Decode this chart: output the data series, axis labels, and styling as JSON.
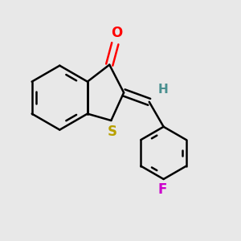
{
  "bg_color": "#e8e8e8",
  "bond_color": "#000000",
  "O_color": "#ff0000",
  "S_color": "#b8a000",
  "F_color": "#cc00cc",
  "H_color": "#4a9090",
  "line_width": 1.8,
  "figsize": [
    3.0,
    3.0
  ],
  "dpi": 100,
  "xlim": [
    -1.3,
    1.5
  ],
  "ylim": [
    -1.4,
    1.1
  ]
}
